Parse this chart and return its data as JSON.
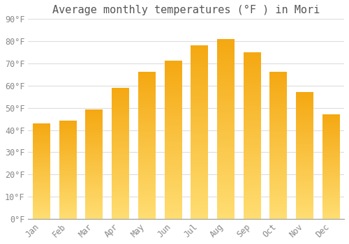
{
  "title": "Average monthly temperatures (°F ) in Mori",
  "months": [
    "Jan",
    "Feb",
    "Mar",
    "Apr",
    "May",
    "Jun",
    "Jul",
    "Aug",
    "Sep",
    "Oct",
    "Nov",
    "Dec"
  ],
  "values": [
    43,
    44,
    49,
    59,
    66,
    71,
    78,
    81,
    75,
    66,
    57,
    47
  ],
  "bar_color_top": "#F5A800",
  "bar_color_bottom": "#FFD966",
  "background_color": "#FFFFFF",
  "grid_color": "#DDDDDD",
  "ylim": [
    0,
    90
  ],
  "yticks": [
    0,
    10,
    20,
    30,
    40,
    50,
    60,
    70,
    80,
    90
  ],
  "title_fontsize": 11,
  "tick_fontsize": 8.5,
  "bar_width": 0.65
}
